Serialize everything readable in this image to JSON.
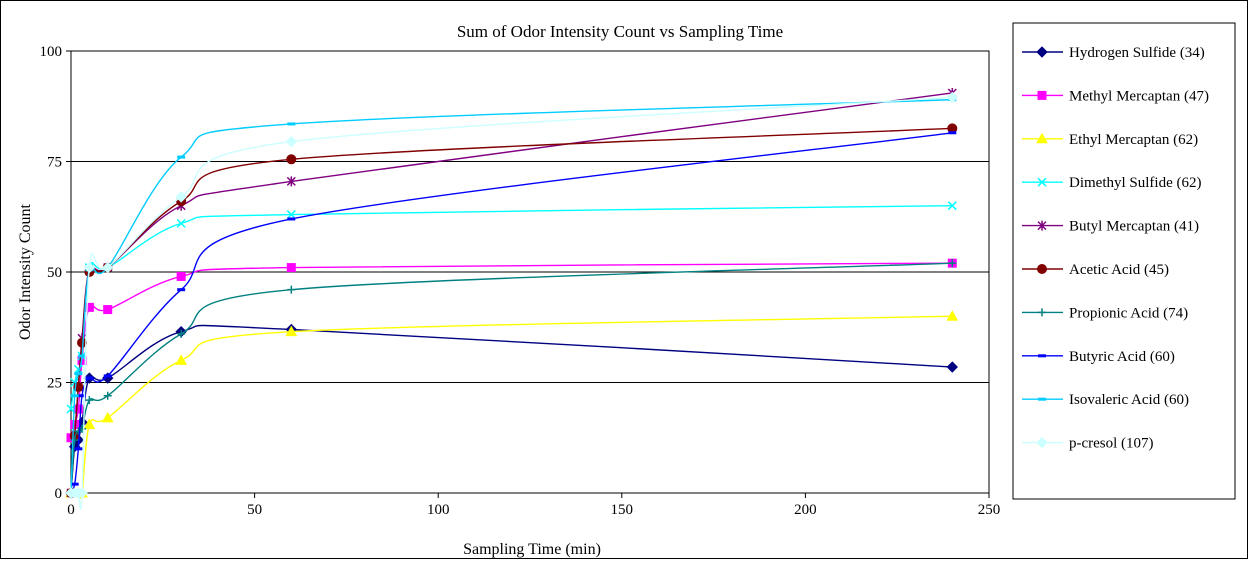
{
  "chart_data": {
    "type": "line",
    "title": "Sum of Odor Intensity Count vs Sampling Time",
    "xlabel": "Sampling Time (min)",
    "ylabel": "Odor Intensity Count",
    "xlim": [
      0,
      250
    ],
    "ylim": [
      0,
      100
    ],
    "x_ticks": [
      0,
      50,
      100,
      150,
      200,
      250
    ],
    "y_ticks": [
      0,
      25,
      50,
      75,
      100
    ],
    "grid": "horizontal",
    "legend_position": "right",
    "x": [
      0,
      1,
      2,
      3,
      5,
      10,
      30,
      60,
      240
    ],
    "series": [
      {
        "name": "Hydrogen Sulfide (34)",
        "color": "#000080",
        "marker": "diamond",
        "values": [
          0,
          10.5,
          12,
          16,
          26,
          26,
          36.5,
          37,
          28.5
        ]
      },
      {
        "name": "Methyl Mercaptan (47)",
        "color": "#ff00ff",
        "marker": "square",
        "values": [
          12.5,
          15.5,
          19,
          30,
          42,
          41.5,
          49,
          51,
          52
        ]
      },
      {
        "name": "Ethyl Mercaptan (62)",
        "color": "#ffff00",
        "marker": "triangle",
        "values": [
          0,
          0,
          0,
          0,
          15.5,
          17,
          30,
          36.5,
          40
        ]
      },
      {
        "name": "Dimethyl Sulfide (62)",
        "color": "#00ffff",
        "marker": "x",
        "values": [
          19,
          25,
          28,
          31,
          51,
          51,
          61,
          63,
          65
        ]
      },
      {
        "name": "Butyl Mercaptan (41)",
        "color": "#800080",
        "marker": "star",
        "values": [
          0,
          13,
          24,
          35,
          50.5,
          51,
          65,
          70.5,
          90.5
        ]
      },
      {
        "name": "Acetic Acid (45)",
        "color": "#800000",
        "marker": "circle",
        "values": [
          0,
          13,
          24,
          34,
          50,
          51,
          66,
          75.5,
          82.5
        ]
      },
      {
        "name": "Propionic Acid (74)",
        "color": "#008080",
        "marker": "plus",
        "values": [
          0,
          12,
          14,
          14.5,
          21,
          22,
          36,
          46,
          52
        ]
      },
      {
        "name": "Butyric Acid (60)",
        "color": "#0000ff",
        "marker": "dash",
        "values": [
          0,
          2,
          10,
          22,
          26,
          26.5,
          46,
          62,
          81.5
        ]
      },
      {
        "name": "Isovaleric Acid (60)",
        "color": "#00ccff",
        "marker": "dash",
        "values": [
          0,
          22,
          27,
          31,
          50.5,
          51,
          76,
          83.5,
          89
        ]
      },
      {
        "name": "p-cresol (107)",
        "color": "#ccffff",
        "marker": "diamond",
        "values": [
          0,
          0,
          0,
          0,
          51,
          51,
          67,
          79.5,
          89.5
        ]
      }
    ]
  }
}
